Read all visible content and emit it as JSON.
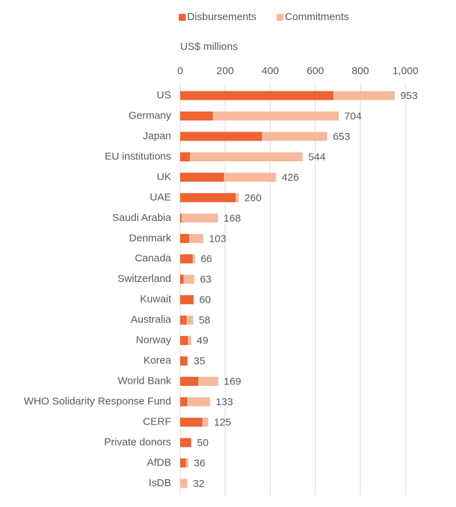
{
  "chart_data": {
    "type": "bar",
    "orientation": "horizontal",
    "overlap": true,
    "xlabel": "US$ millions",
    "categories": [
      "US",
      "Germany",
      "Japan",
      "EU institutions",
      "UK",
      "UAE",
      "Saudi Arabia",
      "Denmark",
      "Canada",
      "Switzerland",
      "Kuwait",
      "Australia",
      "Norway",
      "Korea",
      "World Bank",
      "WHO Solidarity Response Fund",
      "CERF",
      "Private donors",
      "AfDB",
      "IsDB"
    ],
    "series": [
      {
        "name": "Commitments",
        "color": "#f7b99c",
        "values": [
          953,
          704,
          653,
          544,
          426,
          260,
          168,
          103,
          66,
          63,
          60,
          58,
          49,
          35,
          169,
          133,
          125,
          50,
          36,
          32
        ]
      },
      {
        "name": "Disbursements",
        "color": "#ed6331",
        "values": [
          680,
          145,
          363,
          43,
          194,
          246,
          6,
          40,
          55,
          15,
          60,
          28,
          34,
          31,
          80,
          31,
          98,
          49,
          25,
          0
        ]
      }
    ],
    "xlim": [
      0,
      1000
    ],
    "xticks": [
      0,
      200,
      400,
      600,
      800,
      {
        "value": 1000,
        "label": "1,000"
      }
    ],
    "grid": true
  }
}
